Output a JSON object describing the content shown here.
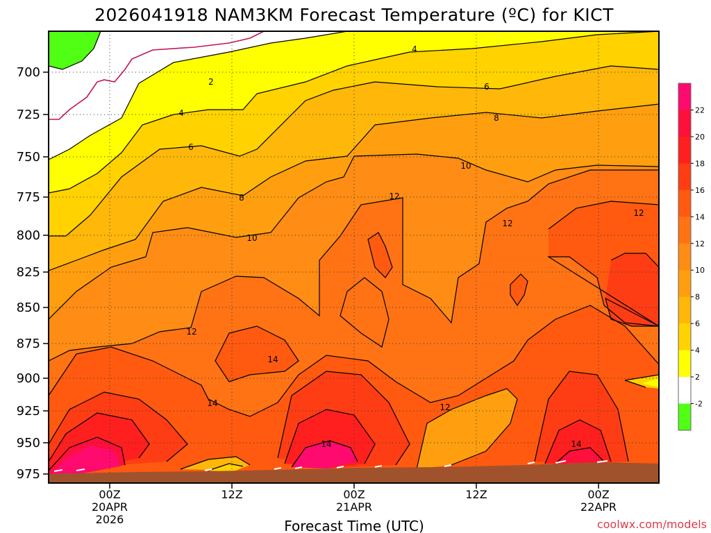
{
  "chart_data": {
    "type": "heatmap",
    "title": "2026041918 NAM3KM Forecast Temperature (ºC) for KICT",
    "xlabel": "Forecast Time (UTC)",
    "ylabel": "",
    "credit": "coolwx.com/models",
    "y_ticks": [
      "700",
      "725",
      "750",
      "775",
      "800",
      "825",
      "850",
      "875",
      "900",
      "925",
      "950",
      "975"
    ],
    "x_ticks": [
      {
        "label": "00Z",
        "sub": "20APR",
        "sub2": "2026"
      },
      {
        "label": "12Z",
        "sub": "",
        "sub2": ""
      },
      {
        "label": "00Z",
        "sub": "21APR",
        "sub2": ""
      },
      {
        "label": "12Z",
        "sub": "",
        "sub2": ""
      },
      {
        "label": "00Z",
        "sub": "22APR",
        "sub2": ""
      }
    ],
    "colorbar": {
      "labels": [
        "22",
        "20",
        "18",
        "16",
        "14",
        "12",
        "10",
        "8",
        "6",
        "4",
        "2",
        "-2"
      ],
      "colors": [
        "#ff0a6e",
        "#ff0f3c",
        "#ff1f1f",
        "#ff3d14",
        "#ff5a0f",
        "#ff7314",
        "#ff8c14",
        "#ff9f0f",
        "#ffb70a",
        "#ffd200",
        "#ffff00",
        "#ffffff",
        "#50ff14"
      ]
    },
    "contour_labels": [
      "2",
      "4",
      "6",
      "8",
      "10",
      "12",
      "14",
      "4",
      "6",
      "8",
      "10",
      "12",
      "12",
      "12",
      "14",
      "12",
      "14",
      "14"
    ]
  }
}
